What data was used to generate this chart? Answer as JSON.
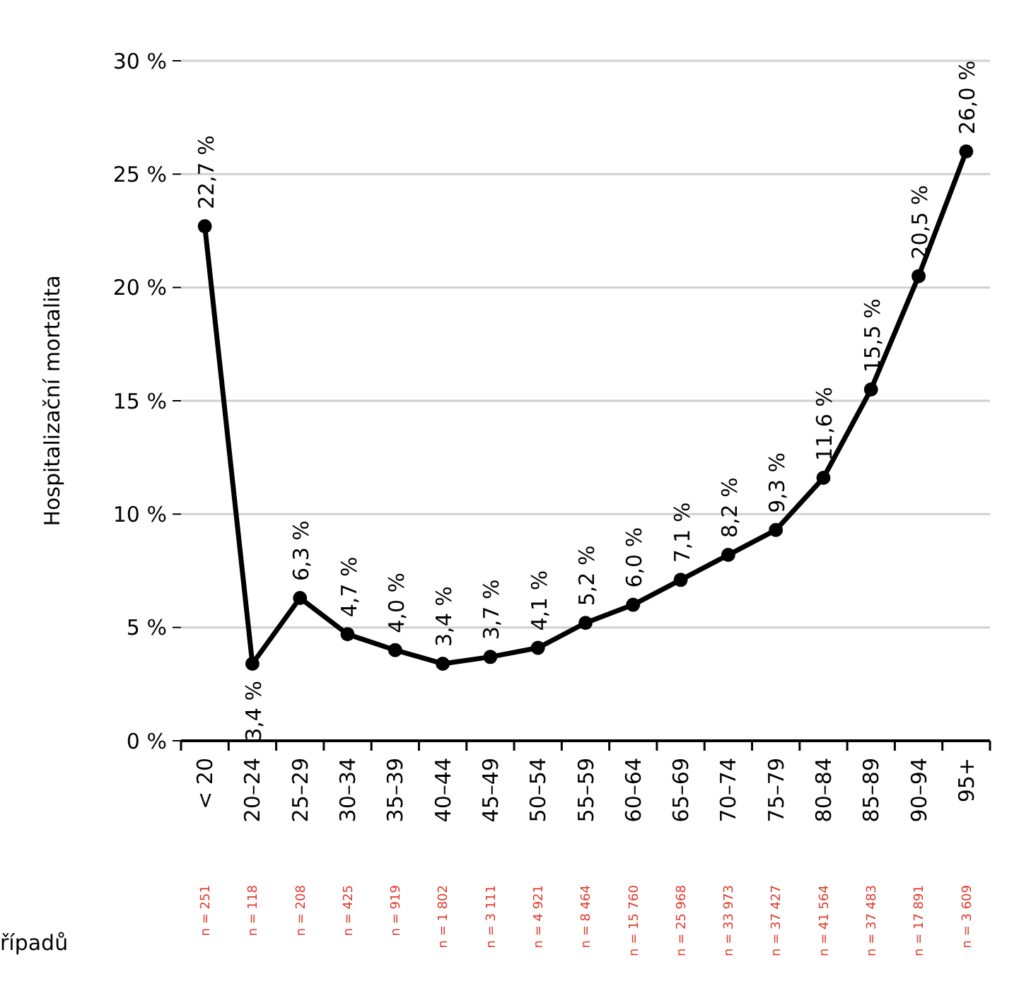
{
  "chart_data": {
    "type": "line",
    "ylabel": "Hospitalizační mortalita",
    "categories": [
      "< 20",
      "20–24",
      "25–29",
      "30–34",
      "35–39",
      "40–44",
      "45–49",
      "50–54",
      "55–59",
      "60–64",
      "65–69",
      "70–74",
      "75–79",
      "80–84",
      "85–89",
      "90–94",
      "95+"
    ],
    "series": [
      {
        "color": "#000000",
        "values": [
          22.7,
          3.4,
          6.3,
          4.7,
          4.0,
          3.4,
          3.7,
          4.1,
          5.2,
          6.0,
          7.1,
          8.2,
          9.3,
          11.6,
          15.5,
          20.5,
          26.0
        ],
        "value_labels": [
          "22,7 %",
          "3,4 %",
          "6,3 %",
          "4,7 %",
          "4,0 %",
          "3,4 %",
          "3,7 %",
          "4,1 %",
          "5,2 %",
          "6,0 %",
          "7,1 %",
          "8,2 %",
          "9,3 %",
          "11,6 %",
          "15,5 %",
          "20,5 %",
          "26,0 %"
        ]
      }
    ],
    "ylim": [
      0,
      30
    ],
    "yticks": [
      {
        "value": 0,
        "label": "0 %"
      },
      {
        "value": 5,
        "label": "5 %"
      },
      {
        "value": 10,
        "label": "10 %"
      },
      {
        "value": 15,
        "label": "15 %"
      },
      {
        "value": 20,
        "label": "20 %"
      },
      {
        "value": 25,
        "label": "25 %"
      },
      {
        "value": 30,
        "label": "30 %"
      }
    ],
    "grid": "y",
    "marker": "circle",
    "line_style": "solid",
    "annotations": [
      "n = 251",
      "n = 118",
      "n = 208",
      "n = 425",
      "n = 919",
      "n = 1 802",
      "n = 3 111",
      "n = 4 921",
      "n = 8 464",
      "n = 15 760",
      "n = 25 968",
      "n = 33 973",
      "n = 37 427",
      "n = 41 564",
      "n = 37 483",
      "n = 17 891",
      "n = 3 609",
      "řípadů"
    ]
  }
}
